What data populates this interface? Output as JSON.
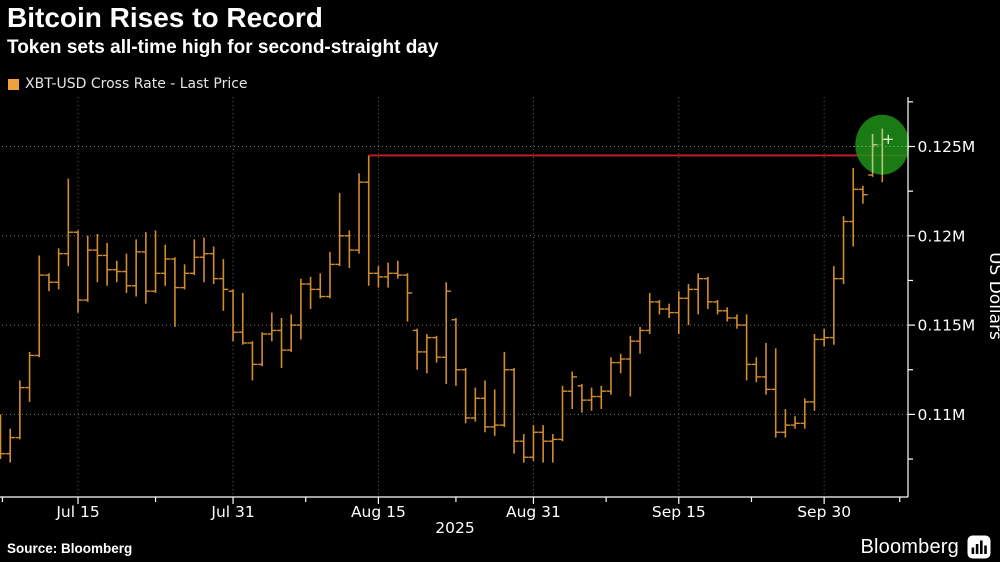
{
  "header": {
    "title": "Bitcoin Rises to Record",
    "subtitle": "Token sets all-time high for second-straight day"
  },
  "legend": {
    "label": "XBT-USD Cross Rate - Last Price",
    "swatch_color": "#efa23b"
  },
  "footer": {
    "source_label": "Source: Bloomberg",
    "logo_label": "Bloomberg",
    "logo_icon": "bar-chart-in-rounded-square"
  },
  "chart_data": {
    "type": "ohlc-bar",
    "title": "XBT-USD Cross Rate - Last Price",
    "ylabel": "US Dollars",
    "year_label": "2025",
    "unit": "thousand USD (axis shown in millions, e.g. 0.125M)",
    "bar_fields": [
      "date",
      "open",
      "high",
      "low",
      "close"
    ],
    "ylim_k": [
      105.3,
      127.7
    ],
    "grid": "dotted",
    "colors": {
      "bar": "#d28c2d",
      "record_line": "#c41f1f",
      "highlight_circle": "#1f9117",
      "highlight_bar": "#b5c77d",
      "grid_h": "#6f6f6f",
      "grid_v": "#5c5c5c",
      "axis": "#ffffff",
      "text": "#ffffff"
    },
    "y_ticks": [
      {
        "value_k": 125.0,
        "label": "0.125M"
      },
      {
        "value_k": 120.0,
        "label": "0.12M"
      },
      {
        "value_k": 115.0,
        "label": "0.115M"
      },
      {
        "value_k": 110.0,
        "label": "0.11M"
      }
    ],
    "y_minor_ticks_k": [
      127.5,
      122.5,
      117.5,
      112.5,
      107.5
    ],
    "x_ticks": [
      {
        "day": 8,
        "label": "Jul 15"
      },
      {
        "day": 24,
        "label": "Jul 31"
      },
      {
        "day": 39,
        "label": "Aug 15"
      },
      {
        "day": 55,
        "label": "Aug 31"
      },
      {
        "day": 70,
        "label": "Sep 15"
      },
      {
        "day": 85,
        "label": "Sep 30"
      }
    ],
    "x_minor_tick_days": [
      0.2,
      16,
      31.5,
      47,
      62.5,
      77.5,
      92.8
    ],
    "record_line": {
      "value_k": 124.5,
      "start_day": 38,
      "note": "prior all-time high set Aug 14"
    },
    "highlight": {
      "center_day": 91,
      "center_value_k": 125.1,
      "radius_px": 29,
      "last_price_marker_k": 125.4
    },
    "bars": [
      [
        "Jul 7",
        109.0,
        110.0,
        107.5,
        107.8
      ],
      [
        "Jul 8",
        107.8,
        109.2,
        107.3,
        108.7
      ],
      [
        "Jul 9",
        108.7,
        111.9,
        108.6,
        111.5
      ],
      [
        "Jul 10",
        111.5,
        113.5,
        110.7,
        113.3
      ],
      [
        "Jul 11",
        113.3,
        118.9,
        113.2,
        117.8
      ],
      [
        "Jul 12",
        117.8,
        117.9,
        116.9,
        117.4
      ],
      [
        "Jul 13",
        117.4,
        119.3,
        117.0,
        119.0
      ],
      [
        "Jul 14",
        119.0,
        123.2,
        118.3,
        120.2
      ],
      [
        "Jul 15",
        120.2,
        120.3,
        115.7,
        116.4
      ],
      [
        "Jul 16",
        116.4,
        120.0,
        116.3,
        119.2
      ],
      [
        "Jul 17",
        119.2,
        120.1,
        117.4,
        118.9
      ],
      [
        "Jul 18",
        118.9,
        119.6,
        117.2,
        118.1
      ],
      [
        "Jul 19",
        118.1,
        118.6,
        117.4,
        118.0
      ],
      [
        "Jul 20",
        118.0,
        119.0,
        116.8,
        117.2
      ],
      [
        "Jul 21",
        117.2,
        119.8,
        116.6,
        119.1
      ],
      [
        "Jul 22",
        119.1,
        120.2,
        116.2,
        116.9
      ],
      [
        "Jul 23",
        116.9,
        120.3,
        116.8,
        117.9
      ],
      [
        "Jul 24",
        117.9,
        119.5,
        117.2,
        118.7
      ],
      [
        "Jul 25",
        118.7,
        118.8,
        114.9,
        117.1
      ],
      [
        "Jul 26",
        117.1,
        118.4,
        117.0,
        117.9
      ],
      [
        "Jul 27",
        117.9,
        119.8,
        117.8,
        118.8
      ],
      [
        "Jul 28",
        118.8,
        119.9,
        117.4,
        119.0
      ],
      [
        "Jul 29",
        119.0,
        119.4,
        117.3,
        117.6
      ],
      [
        "Jul 30",
        117.6,
        118.7,
        115.8,
        117.0
      ],
      [
        "Jul 31",
        116.9,
        117.0,
        114.1,
        114.6
      ],
      [
        "Aug 1",
        114.6,
        116.8,
        113.9,
        114.0
      ],
      [
        "Aug 2",
        114.0,
        114.1,
        111.9,
        112.8
      ],
      [
        "Aug 3",
        112.8,
        114.6,
        112.7,
        114.5
      ],
      [
        "Aug 4",
        114.5,
        115.7,
        114.1,
        114.7
      ],
      [
        "Aug 5",
        114.7,
        115.4,
        112.6,
        113.6
      ],
      [
        "Aug 6",
        113.6,
        115.6,
        113.5,
        115.0
      ],
      [
        "Aug 7",
        115.0,
        117.6,
        114.2,
        117.3
      ],
      [
        "Aug 8",
        117.3,
        117.7,
        115.9,
        117.0
      ],
      [
        "Aug 9",
        117.0,
        117.9,
        116.5,
        116.6
      ],
      [
        "Aug 10",
        116.6,
        119.1,
        116.5,
        118.4
      ],
      [
        "Aug 11",
        118.4,
        122.4,
        118.3,
        120.0
      ],
      [
        "Aug 12",
        120.0,
        120.3,
        118.2,
        119.2
      ],
      [
        "Aug 13",
        119.2,
        123.5,
        119.0,
        123.0
      ],
      [
        "Aug 14",
        123.0,
        124.5,
        117.2,
        117.9
      ],
      [
        "Aug 15",
        117.9,
        118.3,
        117.1,
        117.7
      ],
      [
        "Aug 16",
        117.7,
        118.5,
        117.1,
        117.9
      ],
      [
        "Aug 17",
        117.9,
        118.6,
        117.6,
        117.8
      ],
      [
        "Aug 18",
        117.8,
        117.9,
        115.2,
        116.8
      ],
      [
        "Aug 19",
        114.7,
        114.8,
        112.5,
        113.5
      ],
      [
        "Aug 20",
        113.5,
        114.5,
        112.3,
        114.3
      ],
      [
        "Aug 21",
        114.3,
        114.4,
        112.9,
        113.2
      ],
      [
        "Aug 22",
        113.2,
        117.4,
        111.7,
        116.9
      ],
      [
        "Aug 23",
        115.3,
        115.4,
        111.6,
        112.5
      ],
      [
        "Aug 24",
        112.5,
        112.6,
        109.5,
        109.8
      ],
      [
        "Aug 25",
        109.8,
        111.5,
        109.6,
        110.9
      ],
      [
        "Aug 26",
        110.9,
        111.9,
        109.0,
        109.3
      ],
      [
        "Aug 27",
        109.3,
        111.4,
        108.8,
        109.4
      ],
      [
        "Aug 28",
        109.4,
        113.5,
        109.3,
        112.5
      ],
      [
        "Aug 29",
        112.5,
        112.6,
        107.8,
        108.5
      ],
      [
        "Aug 30",
        108.5,
        108.9,
        107.3,
        107.6
      ],
      [
        "Aug 31",
        107.6,
        109.4,
        107.4,
        109.0
      ],
      [
        "Sep 1",
        109.0,
        109.4,
        107.3,
        108.5
      ],
      [
        "Sep 2",
        108.5,
        108.9,
        107.3,
        108.6
      ],
      [
        "Sep 3",
        108.6,
        111.6,
        108.5,
        111.3
      ],
      [
        "Sep 4",
        111.3,
        112.4,
        110.3,
        112.1
      ],
      [
        "Sep 5",
        111.6,
        111.7,
        110.1,
        110.8
      ],
      [
        "Sep 6",
        110.8,
        111.5,
        110.2,
        111.0
      ],
      [
        "Sep 7",
        111.0,
        111.6,
        110.3,
        111.3
      ],
      [
        "Sep 8",
        111.3,
        113.2,
        111.1,
        112.9
      ],
      [
        "Sep 9",
        112.9,
        113.4,
        112.3,
        113.1
      ],
      [
        "Sep 10",
        113.1,
        114.4,
        111.0,
        114.1
      ],
      [
        "Sep 11",
        114.1,
        114.9,
        113.4,
        114.7
      ],
      [
        "Sep 12",
        114.7,
        116.8,
        114.5,
        116.3
      ],
      [
        "Sep 13",
        116.3,
        116.4,
        115.6,
        115.9
      ],
      [
        "Sep 14",
        115.9,
        116.2,
        115.4,
        115.7
      ],
      [
        "Sep 15",
        115.7,
        116.9,
        114.5,
        116.5
      ],
      [
        "Sep 16",
        116.5,
        117.3,
        115.0,
        117.0
      ],
      [
        "Sep 17",
        117.0,
        117.9,
        115.6,
        117.6
      ],
      [
        "Sep 18",
        117.6,
        117.7,
        115.9,
        116.3
      ],
      [
        "Sep 19",
        116.3,
        116.4,
        115.6,
        115.8
      ],
      [
        "Sep 20",
        115.8,
        116.0,
        115.2,
        115.4
      ],
      [
        "Sep 21",
        115.4,
        115.6,
        114.8,
        115.0
      ],
      [
        "Sep 22",
        115.0,
        115.6,
        111.9,
        112.8
      ],
      [
        "Sep 23",
        112.8,
        113.2,
        111.8,
        112.1
      ],
      [
        "Sep 24",
        112.1,
        114.0,
        111.1,
        111.4
      ],
      [
        "Sep 25",
        111.4,
        113.7,
        108.7,
        109.0
      ],
      [
        "Sep 26",
        109.0,
        110.3,
        108.7,
        109.4
      ],
      [
        "Sep 27",
        109.4,
        109.9,
        109.2,
        109.5
      ],
      [
        "Sep 28",
        109.5,
        110.9,
        109.2,
        110.7
      ],
      [
        "Sep 29",
        110.7,
        114.5,
        110.2,
        114.2
      ],
      [
        "Sep 30",
        114.2,
        114.8,
        113.8,
        114.3
      ],
      [
        "Oct 1",
        114.3,
        118.3,
        113.9,
        117.6
      ],
      [
        "Oct 2",
        117.6,
        121.1,
        117.3,
        120.8
      ],
      [
        "Oct 3",
        120.8,
        123.8,
        119.4,
        122.6
      ],
      [
        "Oct 4",
        122.6,
        122.8,
        121.8,
        122.3
      ],
      [
        "Oct 5",
        123.4,
        125.7,
        123.3,
        125.1
      ],
      [
        "Oct 6",
        125.1,
        126.0,
        123.0,
        125.4
      ]
    ]
  }
}
